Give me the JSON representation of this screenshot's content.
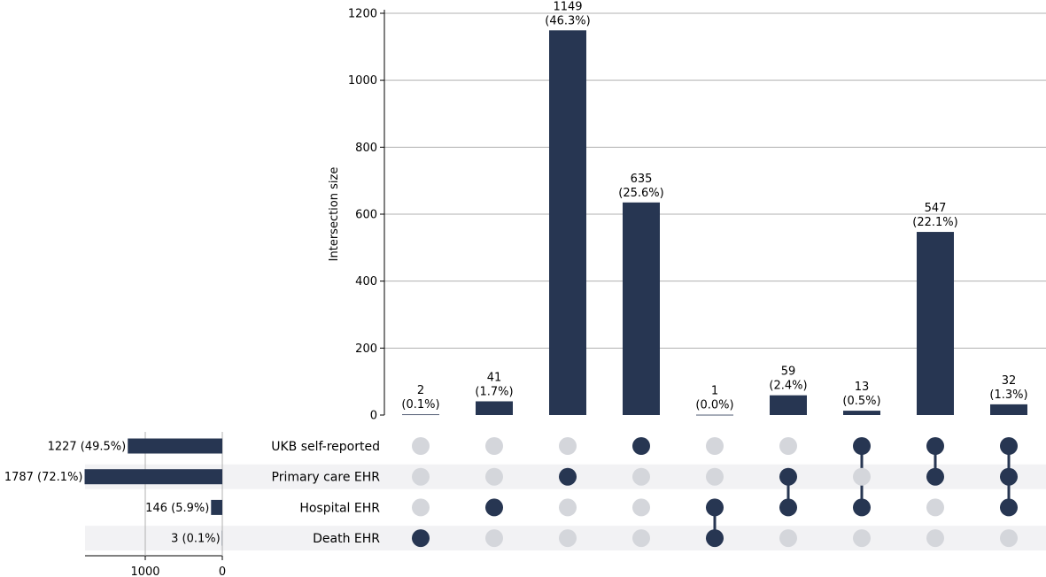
{
  "chart_data": {
    "type": "upset",
    "ylabel": "Intersection size",
    "ylim": [
      0,
      1200
    ],
    "yticks": [
      0,
      200,
      400,
      600,
      800,
      1000,
      1200
    ],
    "grid": true,
    "colors": {
      "bar": "#273652",
      "dot_active": "#273652",
      "dot_inactive": "#d4d6db",
      "stripe": "#f2f2f4",
      "grid": "#b0b0b0"
    },
    "sets": [
      {
        "name": "UKB self-reported",
        "size": 1227,
        "label": "1227 (49.5%)"
      },
      {
        "name": "Primary care EHR",
        "size": 1787,
        "label": "1787 (72.1%)"
      },
      {
        "name": "Hospital EHR",
        "size": 146,
        "label": "146 (5.9%)"
      },
      {
        "name": "Death EHR",
        "size": 3,
        "label": "3 (0.1%)"
      }
    ],
    "set_size_axis": {
      "ticks": [
        1000,
        0
      ],
      "max": 1787
    },
    "intersections": [
      {
        "value": 2,
        "label_count": "2",
        "label_pct": "(0.1%)",
        "members": [
          3
        ]
      },
      {
        "value": 41,
        "label_count": "41",
        "label_pct": "(1.7%)",
        "members": [
          2
        ]
      },
      {
        "value": 1149,
        "label_count": "1149",
        "label_pct": "(46.3%)",
        "members": [
          1
        ]
      },
      {
        "value": 635,
        "label_count": "635",
        "label_pct": "(25.6%)",
        "members": [
          0
        ]
      },
      {
        "value": 1,
        "label_count": "1",
        "label_pct": "(0.0%)",
        "members": [
          2,
          3
        ]
      },
      {
        "value": 59,
        "label_count": "59",
        "label_pct": "(2.4%)",
        "members": [
          1,
          2
        ]
      },
      {
        "value": 13,
        "label_count": "13",
        "label_pct": "(0.5%)",
        "members": [
          0,
          2
        ]
      },
      {
        "value": 547,
        "label_count": "547",
        "label_pct": "(22.1%)",
        "members": [
          0,
          1
        ]
      },
      {
        "value": 32,
        "label_count": "32",
        "label_pct": "(1.3%)",
        "members": [
          0,
          1,
          2
        ]
      }
    ]
  }
}
